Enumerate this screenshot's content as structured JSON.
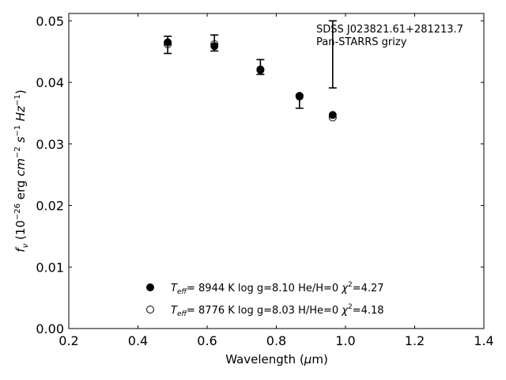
{
  "chart_data": {
    "type": "scatter",
    "title": "",
    "annotation": {
      "line1": "SDSS J023821.61+281213.7",
      "line2": "Pan-STARRS grizy"
    },
    "xlabel": {
      "main": "Wavelength (",
      "mu": "μ",
      "end": "m)"
    },
    "ylabel": {
      "f": "f",
      "nu": "ν",
      "open": " (10",
      "exp26": "−26",
      "erg": " erg ",
      "cm": "cm",
      "cmexp": "−2",
      "s": " s",
      "sexp": "−1",
      "hz": " Hz",
      "hzexp": "−1",
      "close": ")"
    },
    "xlim": [
      0.2,
      1.4
    ],
    "ylim": [
      0.0,
      0.0512
    ],
    "x_ticks": [
      0.2,
      0.4,
      0.6,
      0.8,
      1.0,
      1.2,
      1.4
    ],
    "x_tick_labels": [
      "0.2",
      "0.4",
      "0.6",
      "0.8",
      "1.0",
      "1.2",
      "1.4"
    ],
    "y_ticks": [
      0.0,
      0.01,
      0.02,
      0.03,
      0.04,
      0.05
    ],
    "y_tick_labels": [
      "0.00",
      "0.01",
      "0.02",
      "0.03",
      "0.04",
      "0.05"
    ],
    "grid": false,
    "legend_position": "bottom-center",
    "observed": {
      "x": [
        0.486,
        0.621,
        0.754,
        0.867,
        0.963
      ],
      "y": [
        0.0461,
        0.0461,
        0.0425,
        0.0369,
        0.0445
      ],
      "yerr_lower": [
        0.0014,
        0.001,
        0.0012,
        0.0011,
        0.0054
      ],
      "yerr_upper": [
        0.0014,
        0.0016,
        0.0012,
        0.0011,
        0.0055
      ]
    },
    "series": [
      {
        "name": "Teff= 8944 K  log g=8.10  He/H=0  χ2=4.27",
        "marker": "filled-circle",
        "x": [
          0.486,
          0.621,
          0.754,
          0.867,
          0.963
        ],
        "y": [
          0.0465,
          0.0459,
          0.0421,
          0.0378,
          0.0347
        ]
      },
      {
        "name": "Teff= 8776 K  log g=8.03  H/He=0  χ2=4.18",
        "marker": "open-circle",
        "x": [
          0.486,
          0.621,
          0.754,
          0.867,
          0.963
        ],
        "y": [
          0.0462,
          0.0462,
          0.042,
          0.0377,
          0.0343
        ]
      }
    ],
    "legend": [
      {
        "t": "T",
        "eff": "eff",
        "rest": "=  8944 K  log g=8.10  He/H=0  ",
        "chi": "χ",
        "chiexp": "2",
        "chival": "=4.27"
      },
      {
        "t": "T",
        "eff": "eff",
        "rest": "=  8776 K  log g=8.03  H/He=0  ",
        "chi": "χ",
        "chiexp": "2",
        "chival": "=4.18"
      }
    ]
  }
}
